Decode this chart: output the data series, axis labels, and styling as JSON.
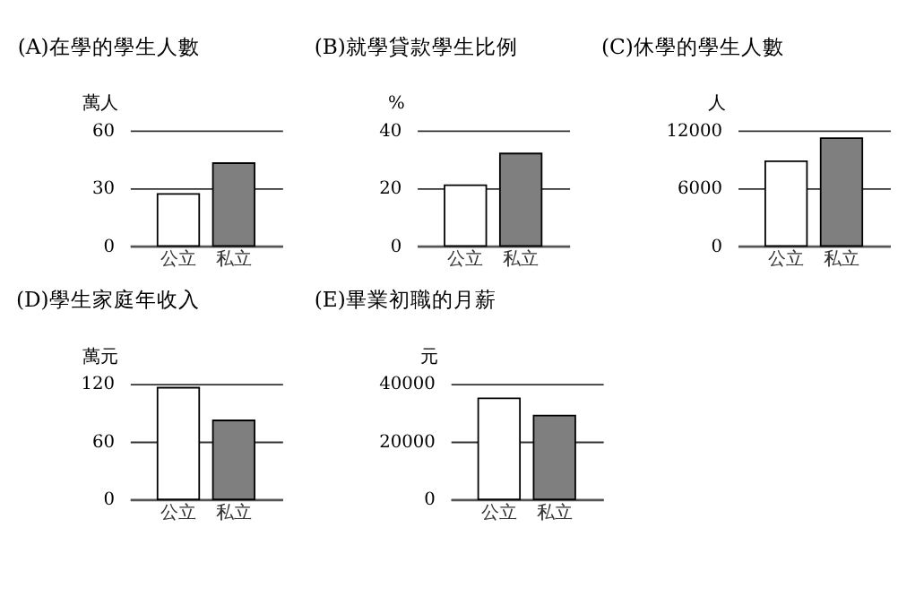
{
  "chart_data": [
    {
      "type": "bar",
      "title": "(A)在學的學生人數",
      "ylabel": "萬人",
      "categories": [
        "公立",
        "私立"
      ],
      "values": [
        27,
        43
      ],
      "colors": [
        "#ffffff",
        "#7f7f7f"
      ],
      "ylim": [
        0,
        60
      ],
      "yticks": [
        0,
        30,
        60
      ],
      "grid": "y"
    },
    {
      "type": "bar",
      "title": "(B)就學貸款學生比例",
      "ylabel": "%",
      "categories": [
        "公立",
        "私立"
      ],
      "values": [
        21,
        32
      ],
      "colors": [
        "#ffffff",
        "#7f7f7f"
      ],
      "ylim": [
        0,
        40
      ],
      "yticks": [
        0,
        20,
        40
      ],
      "grid": "y"
    },
    {
      "type": "bar",
      "title": "(C)休學的學生人數",
      "ylabel": "人",
      "categories": [
        "公立",
        "私立"
      ],
      "values": [
        8800,
        11200
      ],
      "colors": [
        "#ffffff",
        "#7f7f7f"
      ],
      "ylim": [
        0,
        12000
      ],
      "yticks": [
        0,
        6000,
        12000
      ],
      "grid": "y"
    },
    {
      "type": "bar",
      "title": "(D)學生家庭年收入",
      "ylabel": "萬元",
      "categories": [
        "公立",
        "私立"
      ],
      "values": [
        116,
        82
      ],
      "colors": [
        "#ffffff",
        "#7f7f7f"
      ],
      "ylim": [
        0,
        120
      ],
      "yticks": [
        0,
        60,
        120
      ],
      "grid": "y"
    },
    {
      "type": "bar",
      "title": "(E)畢業初職的月薪",
      "ylabel": "元",
      "categories": [
        "公立",
        "私立"
      ],
      "values": [
        35000,
        29000
      ],
      "colors": [
        "#ffffff",
        "#7f7f7f"
      ],
      "ylim": [
        0,
        40000
      ],
      "yticks": [
        0,
        20000,
        40000
      ],
      "grid": "y"
    }
  ]
}
